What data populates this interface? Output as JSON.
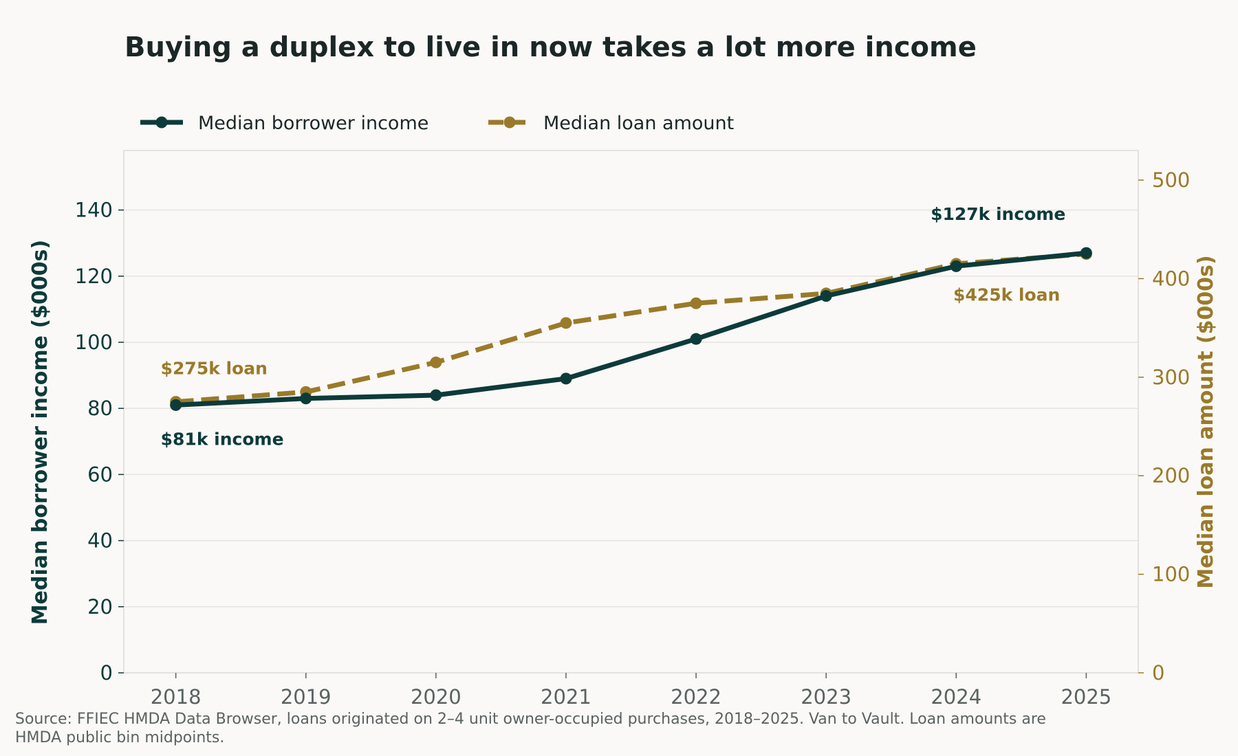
{
  "title": "Buying a duplex to live in now takes a lot more income",
  "source_note": "Source: FFIEC HMDA Data Browser, loans originated on 2–4 unit owner-occupied purchases, 2018–2025. Van to Vault. Loan amounts are HMDA public bin midpoints.",
  "colors": {
    "income": "#0c3b3a",
    "loan": "#9a7a2a",
    "grid": "#e6e4e0",
    "frame": "#dcdad6",
    "year_tick": "#5a6262"
  },
  "chart_data": {
    "type": "line",
    "x": [
      2018,
      2019,
      2020,
      2021,
      2022,
      2023,
      2024,
      2025
    ],
    "x_tick_labels": [
      "2018",
      "2019",
      "2020",
      "2021",
      "2022",
      "2023",
      "2024",
      "2025"
    ],
    "y_left": {
      "label": "Median borrower income ($000s)",
      "range": [
        0,
        158
      ],
      "ticks": [
        0,
        20,
        40,
        60,
        80,
        100,
        120,
        140
      ]
    },
    "y_right": {
      "label": "Median loan amount ($000s)",
      "range": [
        0,
        530
      ],
      "ticks": [
        0,
        100,
        200,
        300,
        400,
        500
      ]
    },
    "grid": "horizontal",
    "legend_placement": "top-left",
    "series": [
      {
        "name": "Median borrower income",
        "axis": "left",
        "style": "solid",
        "values": [
          81,
          83,
          84,
          89,
          101,
          114,
          123,
          127
        ]
      },
      {
        "name": "Median loan amount",
        "axis": "right",
        "style": "dashed",
        "values": [
          275,
          285,
          315,
          355,
          375,
          385,
          415,
          425
        ]
      }
    ],
    "annotations": [
      {
        "text": "$81k income",
        "series": 0,
        "x": 2018
      },
      {
        "text": "$275k loan",
        "series": 1,
        "x": 2018
      },
      {
        "text": "$127k income",
        "series": 0,
        "x": 2025
      },
      {
        "text": "$425k loan",
        "series": 1,
        "x": 2025
      }
    ]
  }
}
